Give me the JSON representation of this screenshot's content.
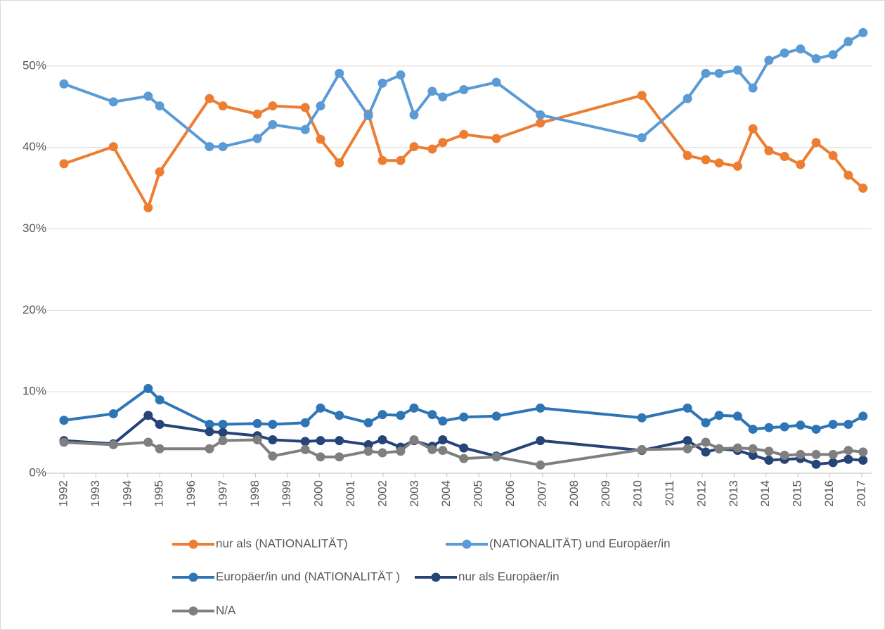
{
  "chart_data": {
    "type": "line",
    "x": [
      1992.0,
      1993.55,
      1994.64,
      1995.0,
      1996.56,
      1996.98,
      1998.06,
      1998.54,
      1999.56,
      2000.04,
      2000.63,
      2001.54,
      2001.98,
      2002.55,
      2002.97,
      2003.54,
      2003.87,
      2004.53,
      2005.55,
      2006.93,
      2010.11,
      2011.54,
      2012.11,
      2012.53,
      2013.11,
      2013.59,
      2014.09,
      2014.58,
      2015.08,
      2015.57,
      2016.1,
      2016.58,
      2017.04
    ],
    "series": [
      {
        "name": "nur als (NATIONALITÄT)",
        "color": "#ed7d31",
        "values": [
          38.0,
          40.1,
          32.6,
          37.0,
          46.0,
          45.1,
          44.1,
          45.1,
          44.9,
          41.0,
          38.1,
          44.1,
          38.4,
          38.4,
          40.1,
          39.8,
          40.6,
          41.6,
          41.1,
          43.0,
          46.4,
          39.0,
          38.5,
          38.1,
          37.7,
          42.3,
          39.6,
          38.9,
          37.9,
          40.6,
          39.0,
          36.6,
          35.0
        ]
      },
      {
        "name": "(NATIONALITÄT) und Europäer/in",
        "color": "#5b9bd5",
        "values": [
          47.8,
          45.6,
          46.3,
          45.1,
          40.1,
          40.1,
          41.1,
          42.8,
          42.2,
          45.1,
          49.1,
          43.9,
          47.9,
          48.9,
          44.0,
          46.9,
          46.2,
          47.1,
          48.0,
          44.0,
          41.2,
          46.0,
          49.1,
          49.1,
          49.5,
          47.3,
          50.7,
          51.6,
          52.1,
          50.9,
          51.4,
          53.0,
          54.1
        ]
      },
      {
        "name": "Europäer/in und (NATIONALITÄT )",
        "color": "#2e75b6",
        "values": [
          6.5,
          7.3,
          10.4,
          9.0,
          6.0,
          6.0,
          6.1,
          6.0,
          6.2,
          8.0,
          7.1,
          6.2,
          7.2,
          7.1,
          8.0,
          7.2,
          6.4,
          6.9,
          7.0,
          8.0,
          6.8,
          8.0,
          6.2,
          7.1,
          7.0,
          5.4,
          5.6,
          5.7,
          5.9,
          5.4,
          6.0,
          6.0,
          7.0
        ]
      },
      {
        "name": "nur als Europäer/in",
        "color": "#264478",
        "values": [
          4.0,
          3.6,
          7.1,
          6.0,
          5.1,
          5.0,
          4.6,
          4.1,
          3.9,
          4.0,
          4.0,
          3.5,
          4.1,
          3.2,
          4.0,
          3.3,
          4.1,
          3.1,
          2.1,
          4.0,
          2.8,
          4.0,
          2.6,
          3.0,
          2.8,
          2.2,
          1.6,
          1.7,
          1.8,
          1.1,
          1.3,
          1.7,
          1.6
        ]
      },
      {
        "name": "N/A",
        "color": "#7f7f7f",
        "values": [
          3.8,
          3.5,
          3.8,
          3.0,
          3.0,
          4.0,
          4.1,
          2.1,
          2.9,
          2.0,
          2.0,
          2.7,
          2.5,
          2.7,
          4.1,
          2.9,
          2.8,
          1.8,
          2.0,
          1.0,
          2.9,
          3.0,
          3.8,
          3.0,
          3.1,
          3.0,
          2.7,
          2.2,
          2.3,
          2.3,
          2.3,
          2.8,
          2.6
        ]
      }
    ],
    "xlim": [
      1991.45,
      2017.31
    ],
    "xticks": [
      1992,
      1993,
      1994,
      1995,
      1996,
      1997,
      1998,
      1999,
      2000,
      2001,
      2002,
      2003,
      2004,
      2005,
      2006,
      2007,
      2008,
      2009,
      2010,
      2011,
      2012,
      2013,
      2014,
      2015,
      2016,
      2017
    ],
    "ylim": [
      0,
      55
    ],
    "yticks": [
      {
        "value": 0,
        "label": "0%"
      },
      {
        "value": 10,
        "label": "10%"
      },
      {
        "value": 20,
        "label": "20%"
      },
      {
        "value": 30,
        "label": "30%"
      },
      {
        "value": 40,
        "label": "40%"
      },
      {
        "value": 50,
        "label": "50%"
      }
    ],
    "grid": true
  }
}
